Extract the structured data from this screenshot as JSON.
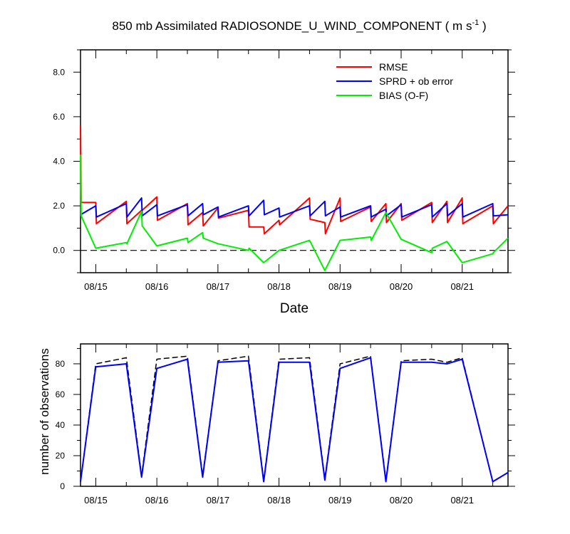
{
  "chart_data": [
    {
      "type": "line",
      "title": "850 mb Assimilated RADIOSONDE_U_WIND_COMPONENT ( m s",
      "title_superscript": "-1",
      "title_suffix": " )",
      "xlabel": "Date",
      "ylabel": "",
      "xlim": [
        0,
        7.0
      ],
      "ylim": [
        -1.0,
        9.0
      ],
      "x_ticks": [
        0.25,
        1.25,
        2.25,
        3.25,
        4.25,
        5.25,
        6.25
      ],
      "x_tick_labels": [
        "08/15",
        "08/16",
        "08/17",
        "08/18",
        "08/19",
        "08/20",
        "08/21"
      ],
      "y_ticks": [
        0,
        2,
        4,
        6,
        8
      ],
      "y_tick_labels": [
        "0.0",
        "2.0",
        "4.0",
        "6.0",
        "8.0"
      ],
      "zero_line": true,
      "legend_position": "top-right",
      "series": [
        {
          "name": "RMSE",
          "color": "#ff0000",
          "x": [
            0,
            0.01,
            0.25,
            0.26,
            0.75,
            0.76,
            1.0,
            1.01,
            1.25,
            1.26,
            1.75,
            1.76,
            2.0,
            2.01,
            2.25,
            2.26,
            2.75,
            2.76,
            3.0,
            3.01,
            3.25,
            3.26,
            3.75,
            3.76,
            4.0,
            4.01,
            4.25,
            4.26,
            4.75,
            4.76,
            5.0,
            5.01,
            5.25,
            5.26,
            5.75,
            5.76,
            6.0,
            6.01,
            6.25,
            6.26,
            6.75,
            6.76,
            7.0
          ],
          "y": [
            5.6,
            2.15,
            2.15,
            1.2,
            2.2,
            1.2,
            1.8,
            1.8,
            2.4,
            1.35,
            2.1,
            1.15,
            1.7,
            1.1,
            1.9,
            1.45,
            1.8,
            1.05,
            1.05,
            0.75,
            1.35,
            1.15,
            2.35,
            1.4,
            1.25,
            0.75,
            2.35,
            1.3,
            1.95,
            1.3,
            2.1,
            1.25,
            2.1,
            1.35,
            2.15,
            1.25,
            2.2,
            1.25,
            2.35,
            1.2,
            2.0,
            1.2,
            2.0
          ]
        },
        {
          "name": "SPRD + ob error",
          "color": "#0000ff",
          "x": [
            0,
            0.25,
            0.26,
            0.75,
            0.76,
            1.0,
            1.01,
            1.25,
            1.26,
            1.75,
            1.76,
            2.0,
            2.01,
            2.25,
            2.26,
            2.75,
            2.76,
            3.0,
            3.01,
            3.25,
            3.26,
            3.75,
            3.76,
            4.0,
            4.01,
            4.25,
            4.26,
            4.75,
            4.76,
            5.0,
            5.01,
            5.25,
            5.26,
            5.75,
            5.76,
            6.0,
            6.01,
            6.25,
            6.26,
            6.75,
            6.76,
            7.0
          ],
          "y": [
            1.6,
            2.0,
            1.5,
            2.1,
            1.5,
            2.35,
            1.55,
            2.05,
            1.55,
            2.05,
            1.55,
            2.1,
            1.6,
            1.95,
            1.5,
            2.0,
            1.55,
            2.25,
            1.6,
            1.9,
            1.5,
            2.0,
            1.55,
            2.2,
            1.55,
            1.95,
            1.5,
            2.0,
            1.5,
            1.85,
            1.55,
            2.05,
            1.5,
            2.05,
            1.5,
            2.1,
            1.55,
            2.1,
            1.5,
            2.1,
            1.55,
            1.6
          ]
        },
        {
          "name": "BIAS (O-F)",
          "color": "#00ee00",
          "x": [
            0,
            0.01,
            0.25,
            0.75,
            0.76,
            1.0,
            1.01,
            1.25,
            1.75,
            1.76,
            2.0,
            2.01,
            2.25,
            2.75,
            2.76,
            3.0,
            3.25,
            3.75,
            3.76,
            4.0,
            4.25,
            4.75,
            4.76,
            5.0,
            5.25,
            5.75,
            5.76,
            6.0,
            6.25,
            6.75,
            6.76,
            7.0
          ],
          "y": [
            4.3,
            1.55,
            0.1,
            0.35,
            0.3,
            1.75,
            1.1,
            0.2,
            0.55,
            0.35,
            0.8,
            0.55,
            0.3,
            0.0,
            0.1,
            -0.55,
            0.0,
            0.45,
            0.4,
            -0.9,
            0.45,
            0.6,
            0.45,
            1.7,
            0.5,
            -0.1,
            0.1,
            0.4,
            -0.55,
            -0.15,
            -0.1,
            0.55
          ]
        }
      ]
    },
    {
      "type": "line",
      "title": "",
      "xlabel": "",
      "ylabel": "number of observations",
      "xlim": [
        0,
        7.0
      ],
      "ylim": [
        0,
        93
      ],
      "x_ticks": [
        0.25,
        1.25,
        2.25,
        3.25,
        4.25,
        5.25,
        6.25
      ],
      "x_tick_labels": [
        "08/15",
        "08/16",
        "08/17",
        "08/18",
        "08/19",
        "08/20",
        "08/21"
      ],
      "y_ticks": [
        0,
        20,
        40,
        60,
        80
      ],
      "y_tick_labels": [
        "0",
        "20",
        "40",
        "60",
        "80"
      ],
      "series": [
        {
          "name": "",
          "color": "#000000",
          "dashed": true,
          "x": [
            0,
            0.25,
            0.75,
            1.0,
            1.25,
            1.75,
            2.0,
            2.25,
            2.75,
            3.0,
            3.25,
            3.75,
            4.0,
            4.25,
            4.75,
            5.0,
            5.25,
            5.75,
            6.0,
            6.25,
            6.75,
            7.0
          ],
          "y": [
            3,
            80,
            84,
            7,
            83,
            85,
            7,
            82,
            85,
            4,
            83,
            84,
            5,
            80,
            85,
            4,
            82,
            83,
            81,
            84,
            3,
            9
          ]
        },
        {
          "name": "",
          "color": "#0000ff",
          "dashed": false,
          "x": [
            0,
            0.25,
            0.75,
            1.0,
            1.25,
            1.75,
            2.0,
            2.25,
            2.75,
            3.0,
            3.25,
            3.75,
            4.0,
            4.25,
            4.75,
            5.0,
            5.25,
            5.75,
            6.0,
            6.25,
            6.75,
            7.0
          ],
          "y": [
            3,
            78,
            80,
            6,
            77,
            83,
            6,
            81,
            82,
            3,
            81,
            81,
            4,
            77,
            84,
            3,
            81,
            81,
            80,
            83,
            3,
            9
          ]
        }
      ]
    }
  ]
}
